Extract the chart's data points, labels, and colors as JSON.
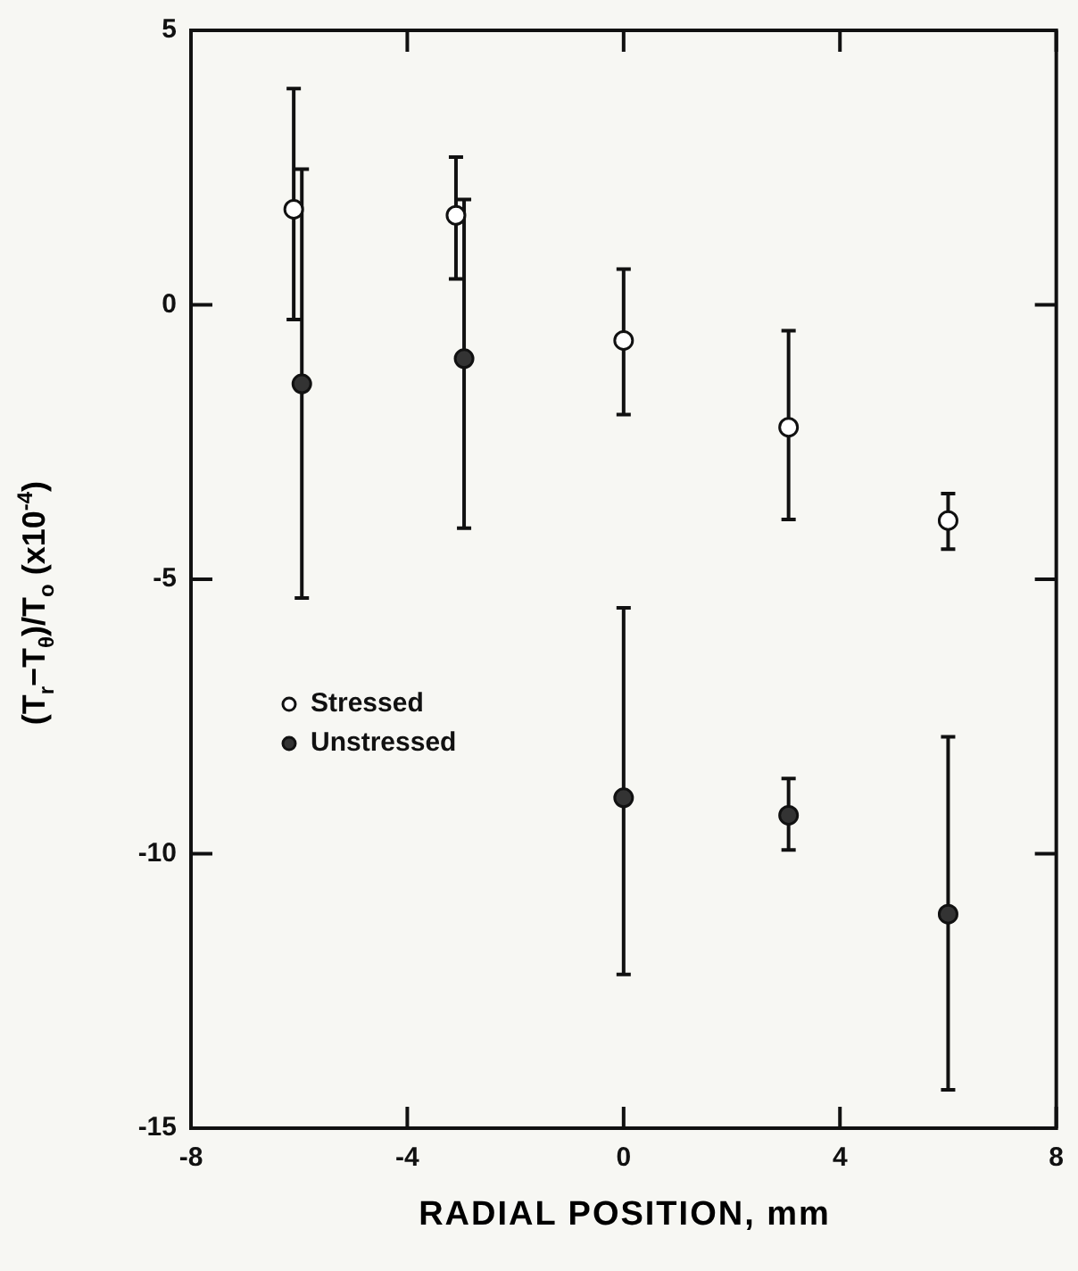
{
  "chart_data": {
    "type": "scatter",
    "xlabel": "RADIAL POSITION, mm",
    "ylabel": "(T$_{r}$−T$_{θ}$)/T$_{o}$ (x10$^{-4}$)",
    "xlim": [
      -8,
      8
    ],
    "xticks": [
      -8,
      -4,
      0,
      4,
      8
    ],
    "ylim": [
      -15,
      5
    ],
    "yticks": [
      -15,
      -10,
      -5,
      0,
      5
    ],
    "grid": false,
    "legend": "left",
    "marker": "circle",
    "series": [
      {
        "name": "Stressed",
        "color": "#ffffff",
        "x": [
          -6.1,
          -3.1,
          0,
          3.05,
          6
        ],
        "values": [
          1.74,
          1.63,
          -0.65,
          -2.23,
          -3.93
        ],
        "errors": [
          [
            -0.27,
            3.94
          ],
          [
            0.47,
            2.69
          ],
          [
            -2.0,
            0.65
          ],
          [
            -3.91,
            -0.47
          ],
          [
            -4.45,
            -3.44
          ]
        ]
      },
      {
        "name": "Unstressed",
        "color": "#333333",
        "x": [
          -5.95,
          -2.95,
          0,
          3.05,
          6
        ],
        "values": [
          -1.44,
          -0.98,
          -8.98,
          -9.3,
          -11.1
        ],
        "errors": [
          [
            -5.34,
            2.47
          ],
          [
            -4.07,
            1.92
          ],
          [
            -12.2,
            -5.52
          ],
          [
            -9.93,
            -8.63
          ],
          [
            -14.3,
            -7.87
          ]
        ]
      }
    ]
  }
}
